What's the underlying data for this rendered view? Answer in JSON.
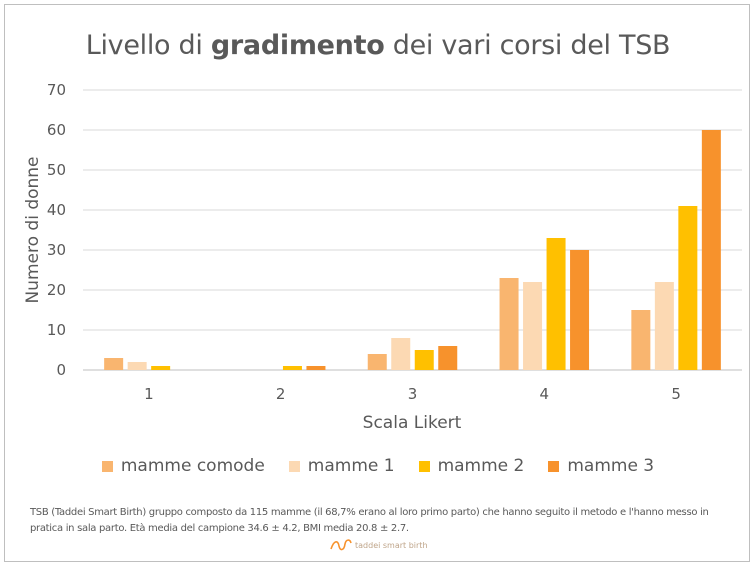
{
  "chart_data": {
    "type": "bar",
    "title_parts": [
      "Livello di ",
      "gradimento",
      " dei vari corsi del TSB"
    ],
    "xlabel": "Scala Likert",
    "ylabel": "Numero di donne",
    "categories": [
      "1",
      "2",
      "3",
      "4",
      "5"
    ],
    "ylim": [
      0,
      70
    ],
    "yticks": [
      "0",
      "10",
      "20",
      "30",
      "40",
      "50",
      "60",
      "70"
    ],
    "grid": true,
    "legend_position": "bottom",
    "series": [
      {
        "name": "mamme comode",
        "color": "#f9b56f",
        "values": [
          3,
          0,
          4,
          23,
          15
        ]
      },
      {
        "name": "mamme 1",
        "color": "#fcd9b3",
        "values": [
          2,
          0,
          8,
          22,
          22
        ]
      },
      {
        "name": "mamme 2",
        "color": "#ffc000",
        "values": [
          1,
          1,
          5,
          33,
          41
        ]
      },
      {
        "name": "mamme 3",
        "color": "#f7922c",
        "values": [
          0,
          1,
          6,
          30,
          60
        ]
      }
    ]
  },
  "footnote": "TSB (Taddei Smart Birth) gruppo composto da 115 mamme (il 68,7% erano al loro primo parto) che hanno seguito il metodo e l'hanno messo in pratica in sala parto. Età media del campione 34.6 ± 4.2, BMI media 20.8 ± 2.7.",
  "logo_text": "taddei smart birth"
}
